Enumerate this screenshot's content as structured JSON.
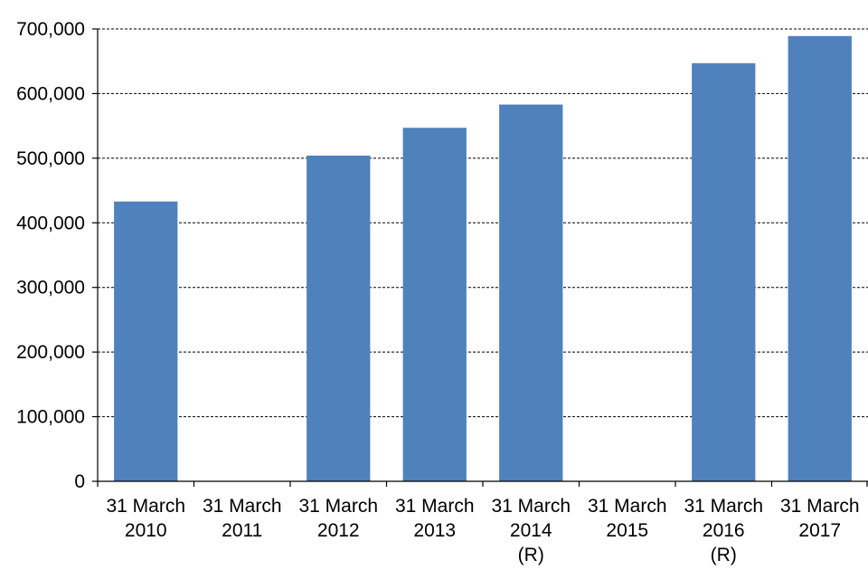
{
  "chart_data": {
    "type": "bar",
    "title": "",
    "xlabel": "",
    "ylabel": "",
    "categories": [
      [
        "31 March",
        "2010"
      ],
      [
        "31 March",
        "2011"
      ],
      [
        "31 March",
        "2012"
      ],
      [
        "31 March",
        "2013"
      ],
      [
        "31 March",
        "2014",
        "(R)"
      ],
      [
        "31 March",
        "2015"
      ],
      [
        "31 March",
        "2016",
        "(R)"
      ],
      [
        "31 March",
        "2017"
      ]
    ],
    "values": [
      433000,
      null,
      504000,
      547000,
      583000,
      null,
      647000,
      689000
    ],
    "ylim": [
      0,
      700000
    ],
    "yticks": [
      0,
      100000,
      200000,
      300000,
      400000,
      500000,
      600000,
      700000
    ],
    "ytick_labels": [
      "0",
      "100,000",
      "200,000",
      "300,000",
      "400,000",
      "500,000",
      "600,000",
      "700,000"
    ],
    "grid": true,
    "legend": "none",
    "colors": {
      "bar": "#4f81bd"
    }
  }
}
